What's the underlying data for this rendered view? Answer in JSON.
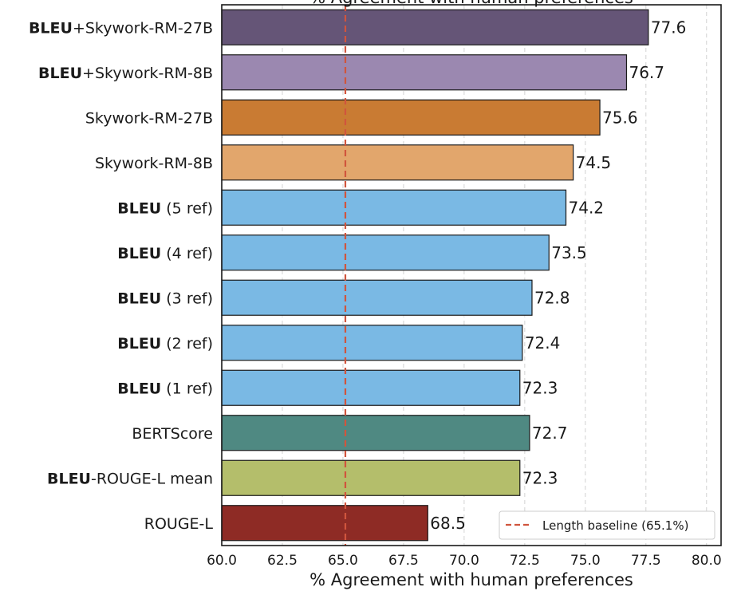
{
  "chart_data": {
    "type": "bar",
    "orientation": "horizontal",
    "title": "% Agreement with human preferences",
    "xlabel": "% Agreement with human preferences",
    "ylabel": "",
    "xlim": [
      60,
      80.6
    ],
    "xticks": [
      "60.0",
      "62.5",
      "65.0",
      "67.5",
      "70.0",
      "72.5",
      "75.0",
      "77.5",
      "80.0"
    ],
    "xtick_values": [
      60,
      62.5,
      65,
      67.5,
      70,
      72.5,
      75,
      77.5,
      80
    ],
    "grid": "vertical-dashed",
    "legend_position": "bottom-right",
    "categories": [
      {
        "bold": "BLEU",
        "rest": "+Skywork-RM-27B"
      },
      {
        "bold": "BLEU",
        "rest": "+Skywork-RM-8B"
      },
      {
        "bold": "",
        "rest": "Skywork-RM-27B"
      },
      {
        "bold": "",
        "rest": "Skywork-RM-8B"
      },
      {
        "bold": "BLEU",
        "rest": " (5 ref)"
      },
      {
        "bold": "BLEU",
        "rest": " (4 ref)"
      },
      {
        "bold": "BLEU",
        "rest": " (3 ref)"
      },
      {
        "bold": "BLEU",
        "rest": " (2 ref)"
      },
      {
        "bold": "BLEU",
        "rest": " (1 ref)"
      },
      {
        "bold": "",
        "rest": "BERTScore"
      },
      {
        "bold": "BLEU",
        "rest": "-ROUGE-L mean"
      },
      {
        "bold": "",
        "rest": "ROUGE-L"
      }
    ],
    "values": [
      77.6,
      76.7,
      75.6,
      74.5,
      74.2,
      73.5,
      72.8,
      72.4,
      72.3,
      72.7,
      72.3,
      68.5
    ],
    "value_labels": [
      "77.6",
      "76.7",
      "75.6",
      "74.5",
      "74.2",
      "73.5",
      "72.8",
      "72.4",
      "72.3",
      "72.7",
      "72.3",
      "68.5"
    ],
    "colors": [
      "#655577",
      "#9b88b0",
      "#c97b33",
      "#e2a66c",
      "#7ab9e4",
      "#7ab9e4",
      "#7ab9e4",
      "#7ab9e4",
      "#7ab9e4",
      "#4f8982",
      "#b4be6b",
      "#8e2b25"
    ],
    "baseline": {
      "value": 65.1,
      "label": "Length baseline (65.1%)",
      "color": "#d0553d"
    }
  }
}
